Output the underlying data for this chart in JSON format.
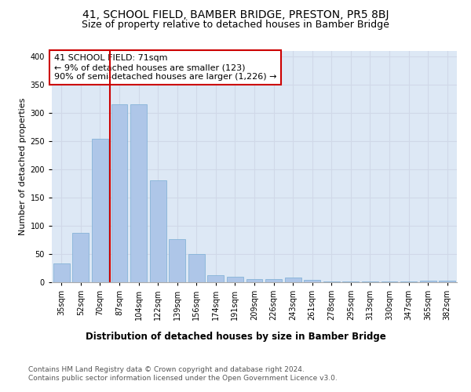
{
  "title": "41, SCHOOL FIELD, BAMBER BRIDGE, PRESTON, PR5 8BJ",
  "subtitle": "Size of property relative to detached houses in Bamber Bridge",
  "xlabel": "Distribution of detached houses by size in Bamber Bridge",
  "ylabel": "Number of detached properties",
  "categories": [
    "35sqm",
    "52sqm",
    "70sqm",
    "87sqm",
    "104sqm",
    "122sqm",
    "139sqm",
    "156sqm",
    "174sqm",
    "191sqm",
    "209sqm",
    "226sqm",
    "243sqm",
    "261sqm",
    "278sqm",
    "295sqm",
    "313sqm",
    "330sqm",
    "347sqm",
    "365sqm",
    "382sqm"
  ],
  "values": [
    33,
    87,
    255,
    315,
    315,
    180,
    77,
    50,
    13,
    10,
    5,
    5,
    8,
    4,
    2,
    1,
    1,
    1,
    1,
    3,
    3
  ],
  "bar_color": "#aec6e8",
  "bar_edge_color": "#7aadd4",
  "vline_index": 2,
  "vline_color": "#cc0000",
  "annotation_text": "41 SCHOOL FIELD: 71sqm\n← 9% of detached houses are smaller (123)\n90% of semi-detached houses are larger (1,226) →",
  "annotation_box_color": "#ffffff",
  "annotation_box_edge_color": "#cc0000",
  "ylim": [
    0,
    410
  ],
  "yticks": [
    0,
    50,
    100,
    150,
    200,
    250,
    300,
    350,
    400
  ],
  "grid_color": "#d0d8e8",
  "background_color": "#dde8f5",
  "footer_text": "Contains HM Land Registry data © Crown copyright and database right 2024.\nContains public sector information licensed under the Open Government Licence v3.0.",
  "title_fontsize": 10,
  "subtitle_fontsize": 9,
  "xlabel_fontsize": 8.5,
  "ylabel_fontsize": 8,
  "tick_fontsize": 7,
  "annotation_fontsize": 8,
  "footer_fontsize": 6.5
}
